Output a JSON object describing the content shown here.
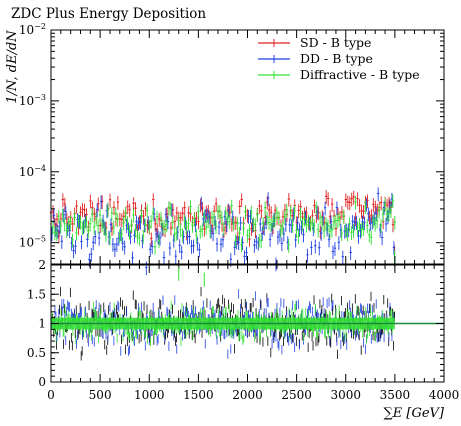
{
  "chart_data": [
    {
      "type": "scatter",
      "title": "ZDC Plus Energy Deposition",
      "ylabel": "1/N, dE/dN",
      "xlim": [
        0,
        4000
      ],
      "ylim": [
        5e-06,
        0.01
      ],
      "yscale": "log",
      "x_ticks": [
        "0",
        "500",
        "1000",
        "1500",
        "2000",
        "2500",
        "3000",
        "3500",
        "4000"
      ],
      "y_ticks": [
        {
          "base": "10",
          "exp": "−2",
          "value": 0.01
        },
        {
          "base": "10",
          "exp": "−3",
          "value": 0.001
        },
        {
          "base": "10",
          "exp": "−4",
          "value": 0.0001
        },
        {
          "base": "10",
          "exp": "−5",
          "value": 1e-05
        }
      ],
      "legend_position": "top-right",
      "series": [
        {
          "name": "SD - B type",
          "color": "#e02020",
          "x": [
            0,
            500,
            1000,
            1500,
            2000,
            2500,
            3000,
            3350,
            3440,
            3480,
            3500
          ],
          "y": [
            2.2e-05,
            2.4e-05,
            2.3e-05,
            2.4e-05,
            2.5e-05,
            2.4e-05,
            2.5e-05,
            2.8e-05,
            3.2e-05,
            3.6e-05,
            7e-06
          ]
        },
        {
          "name": "DD - B type",
          "color": "#2040e0",
          "x": [
            0,
            500,
            1000,
            1500,
            2000,
            2500,
            3000,
            3350,
            3440,
            3480,
            3500
          ],
          "y": [
            1.4e-05,
            1.3e-05,
            1.3e-05,
            1.4e-05,
            1.4e-05,
            1.4e-05,
            1.5e-05,
            1.8e-05,
            2e-05,
            2.5e-05,
            6e-06
          ]
        },
        {
          "name": "Diffractive - B type",
          "color": "#30e030",
          "x": [
            0,
            500,
            1000,
            1500,
            2000,
            2500,
            3000,
            3350,
            3440,
            3480,
            3500
          ],
          "y": [
            1.8e-05,
            1.9e-05,
            1.8e-05,
            1.9e-05,
            1.9e-05,
            1.9e-05,
            2e-05,
            2.2e-05,
            2.6e-05,
            3.1e-05,
            6e-06
          ]
        }
      ]
    },
    {
      "type": "scatter",
      "xlabel": "∑E [GeV]",
      "xlim": [
        0,
        4000
      ],
      "ylim": [
        0,
        2
      ],
      "x_ticks": [
        "0",
        "500",
        "1000",
        "1500",
        "2000",
        "2500",
        "3000",
        "3500",
        "4000"
      ],
      "y_ticks": [
        "0",
        "0.5",
        "1",
        "1.5",
        "2"
      ],
      "reference_value": 1,
      "series": [
        {
          "color": "#30e030",
          "x": [
            1300,
            1560,
            3500,
            4000
          ],
          "y": [
            1.85,
            1.75,
            1,
            1
          ]
        },
        {
          "color": "#2040e0",
          "x": [
            0,
            3500
          ],
          "y": [
            1,
            1
          ]
        }
      ]
    }
  ]
}
